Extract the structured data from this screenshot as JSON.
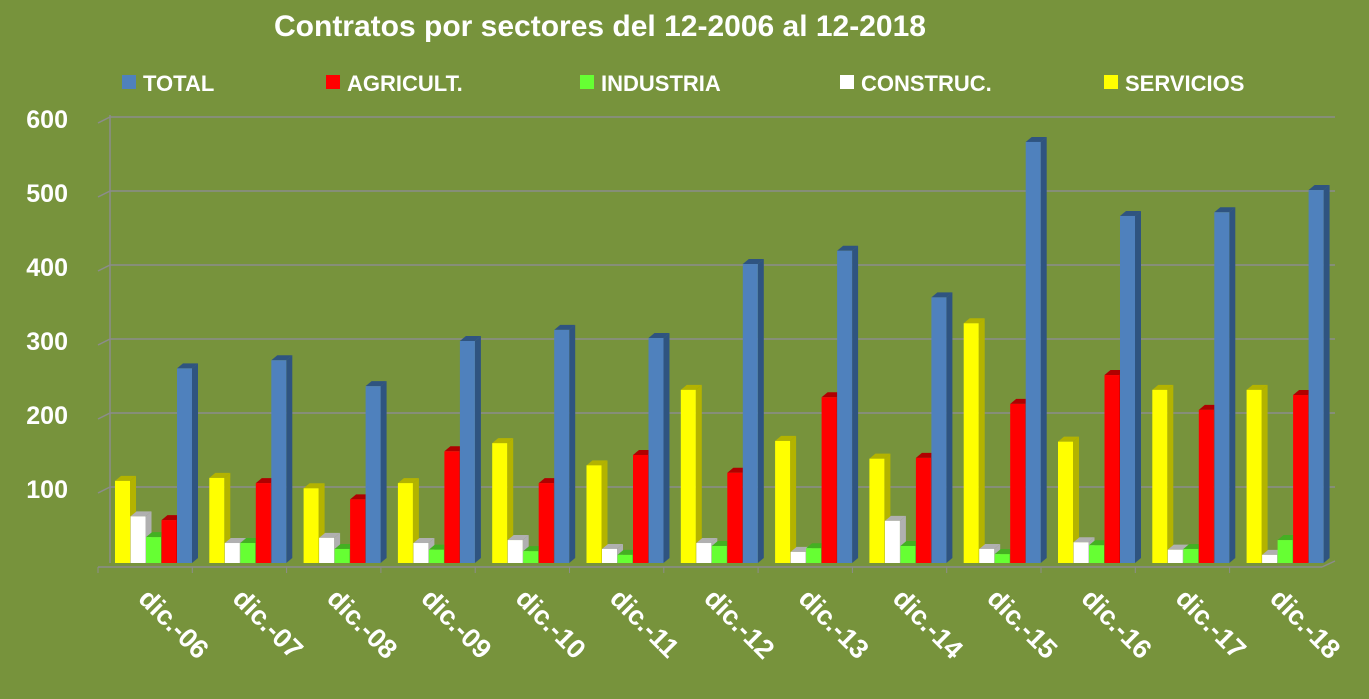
{
  "chart_data": {
    "type": "bar",
    "title": "Contratos por sectores del 12-2006 al 12-2018",
    "xlabel": "",
    "ylabel": "",
    "ylim": [
      0,
      600
    ],
    "yticks": [
      100,
      200,
      300,
      400,
      500,
      600
    ],
    "grid": true,
    "legend_position": "top",
    "categories": [
      "dic.-06",
      "dic.-07",
      "dic.-08",
      "dic.-09",
      "dic.-10",
      "dic.-11",
      "dic.-12",
      "dic.-13",
      "dic.-14",
      "dic.-15",
      "dic.-16",
      "dic.-17",
      "dic.-18"
    ],
    "legend_order": [
      "TOTAL",
      "AGRICULT.",
      "INDUSTRIA",
      "CONSTRUC.",
      "SERVICIOS"
    ],
    "series": [
      {
        "name": "SERVICIOS",
        "color": "#ffff00",
        "side": "#b3b300",
        "values": [
          111,
          115,
          101,
          108,
          162,
          132,
          234,
          165,
          141,
          324,
          164,
          234,
          234
        ]
      },
      {
        "name": "CONSTRUC.",
        "color": "#ffffff",
        "side": "#b0b0b0",
        "values": [
          63,
          27,
          34,
          27,
          31,
          19,
          27,
          15,
          57,
          19,
          28,
          18,
          11
        ]
      },
      {
        "name": "INDUSTRIA",
        "color": "#66ff33",
        "side": "#44b022",
        "values": [
          35,
          27,
          19,
          18,
          16,
          11,
          23,
          20,
          23,
          12,
          24,
          19,
          31
        ]
      },
      {
        "name": "AGRICULT.",
        "color": "#ff0000",
        "side": "#b00000",
        "values": [
          58,
          108,
          86,
          151,
          108,
          146,
          122,
          224,
          142,
          215,
          254,
          207,
          227
        ]
      },
      {
        "name": "TOTAL",
        "color": "#4f81bd",
        "side": "#2f5480",
        "values": [
          263,
          274,
          239,
          300,
          315,
          304,
          404,
          422,
          359,
          569,
          469,
          474,
          504
        ]
      }
    ]
  }
}
